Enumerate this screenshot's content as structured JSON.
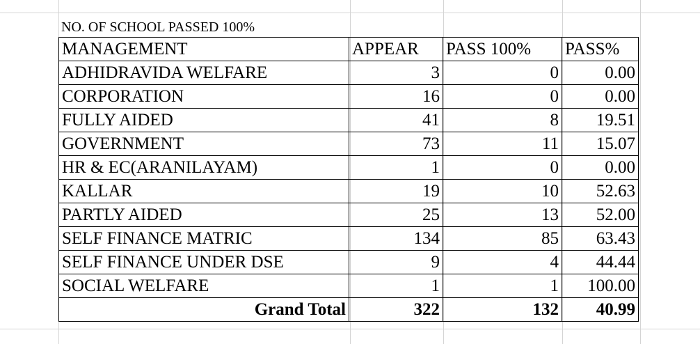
{
  "caption": "NO. OF SCHOOL PASSED 100%",
  "headers": {
    "management": "MANAGEMENT",
    "appear": "APPEAR",
    "pass100": "PASS 100%",
    "pass_pct": "PASS%"
  },
  "rows": [
    {
      "management": "ADHIDRAVIDA WELFARE",
      "appear": "3",
      "pass100": "0",
      "pass_pct": "0.00"
    },
    {
      "management": "CORPORATION",
      "appear": "16",
      "pass100": "0",
      "pass_pct": "0.00"
    },
    {
      "management": "FULLY AIDED",
      "appear": "41",
      "pass100": "8",
      "pass_pct": "19.51"
    },
    {
      "management": "GOVERNMENT",
      "appear": "73",
      "pass100": "11",
      "pass_pct": "15.07"
    },
    {
      "management": "HR & EC(ARANILAYAM)",
      "appear": "1",
      "pass100": "0",
      "pass_pct": "0.00"
    },
    {
      "management": "KALLAR",
      "appear": "19",
      "pass100": "10",
      "pass_pct": "52.63"
    },
    {
      "management": "PARTLY AIDED",
      "appear": "25",
      "pass100": "13",
      "pass_pct": "52.00"
    },
    {
      "management": "SELF FINANCE MATRIC",
      "appear": "134",
      "pass100": "85",
      "pass_pct": "63.43"
    },
    {
      "management": "SELF FINANCE UNDER DSE",
      "appear": "9",
      "pass100": "4",
      "pass_pct": "44.44"
    },
    {
      "management": "SOCIAL WELFARE",
      "appear": "1",
      "pass100": "1",
      "pass_pct": "100.00"
    }
  ],
  "total": {
    "label": "Grand Total",
    "appear": "322",
    "pass100": "132",
    "pass_pct": "40.99"
  }
}
